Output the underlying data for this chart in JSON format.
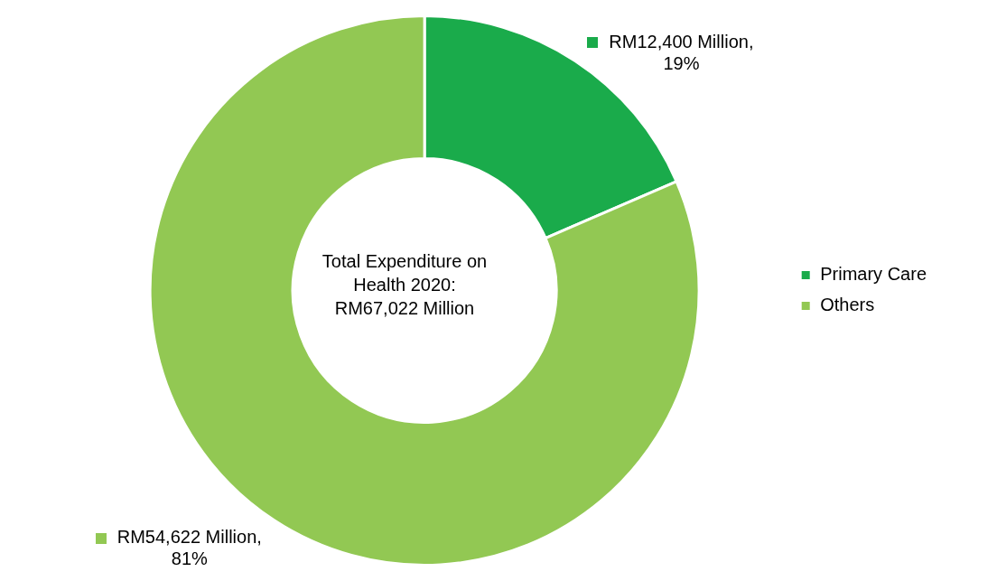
{
  "chart_data": {
    "type": "donut",
    "categories": [
      "Primary Care",
      "Others"
    ],
    "values": [
      12400,
      54622
    ],
    "colors": [
      "#1aab4b",
      "#92c853"
    ],
    "value_labels": [
      "RM12,400 Million, 19%",
      "RM54,622 Million, 81%"
    ],
    "annotations": [
      "Total Expenditure on Health 2020: RM67,022 Million"
    ],
    "legend": "right"
  }
}
